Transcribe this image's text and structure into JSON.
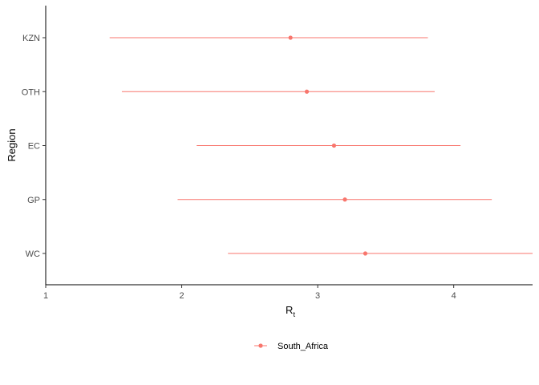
{
  "chart_data": {
    "type": "forest",
    "xlabel": "R",
    "xlabel_subscript": "t",
    "ylabel": "Region",
    "xlim": [
      1,
      4.58
    ],
    "x_ticks": [
      1,
      2,
      3,
      4
    ],
    "x_tick_labels": [
      "1",
      "2",
      "3",
      "4"
    ],
    "grid": false,
    "legend_position": "bottom",
    "series": [
      {
        "name": "South_Africa",
        "color": "#F8766D",
        "points": [
          {
            "category": "KZN",
            "estimate": 2.8,
            "lower": 1.47,
            "upper": 3.81
          },
          {
            "category": "OTH",
            "estimate": 2.92,
            "lower": 1.56,
            "upper": 3.86
          },
          {
            "category": "EC",
            "estimate": 3.12,
            "lower": 2.11,
            "upper": 4.05
          },
          {
            "category": "GP",
            "estimate": 3.2,
            "lower": 1.97,
            "upper": 4.28
          },
          {
            "category": "WC",
            "estimate": 3.35,
            "lower": 2.34,
            "upper": 4.58
          }
        ]
      }
    ]
  }
}
